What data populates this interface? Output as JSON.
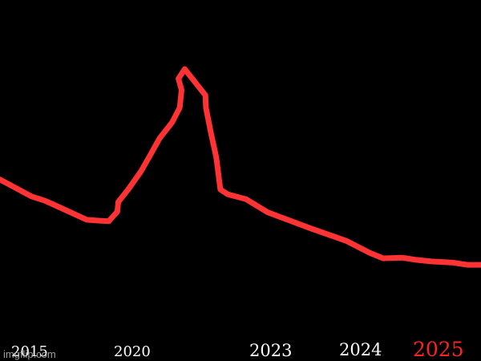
{
  "chart_data": {
    "type": "line",
    "title": "",
    "xlabel": "",
    "ylabel": "",
    "xlim": [
      2015,
      2025.5
    ],
    "ylim": [
      0,
      100
    ],
    "grid": false,
    "legend": "none",
    "background_color": "#000000",
    "line_color": "#ff3333",
    "series": [
      {
        "points": [
          [
            2015.0,
            48.5
          ],
          [
            2015.35,
            45.8
          ],
          [
            2015.7,
            43.1
          ],
          [
            2016.0,
            41.7
          ],
          [
            2016.3,
            39.7
          ],
          [
            2016.65,
            37.3
          ],
          [
            2016.9,
            35.6
          ],
          [
            2017.15,
            35.3
          ],
          [
            2017.4,
            35.1
          ],
          [
            2017.6,
            38.2
          ],
          [
            2017.62,
            41.3
          ],
          [
            2017.85,
            45.3
          ],
          [
            2018.1,
            51.1
          ],
          [
            2018.25,
            56.4
          ],
          [
            2018.4,
            61.8
          ],
          [
            2018.6,
            66.9
          ],
          [
            2018.72,
            71.6
          ],
          [
            2018.75,
            77.3
          ],
          [
            2018.7,
            80.9
          ],
          [
            2018.8,
            84.0
          ],
          [
            2019.3,
            75.6
          ],
          [
            2019.32,
            71.6
          ],
          [
            2019.5,
            63.6
          ],
          [
            2019.7,
            55.6
          ],
          [
            2019.85,
            45.3
          ],
          [
            2020.05,
            43.8
          ],
          [
            2020.35,
            42.2
          ],
          [
            2020.7,
            38.0
          ],
          [
            2021.5,
            32.9
          ],
          [
            2022.3,
            28.7
          ],
          [
            2022.8,
            25.0
          ],
          [
            2023.1,
            23.2
          ],
          [
            2023.5,
            23.4
          ],
          [
            2023.8,
            22.7
          ],
          [
            2024.1,
            22.2
          ],
          [
            2024.5,
            21.8
          ],
          [
            2024.75,
            21.1
          ],
          [
            2025.0,
            21.1
          ]
        ]
      }
    ],
    "x_ticks": [
      {
        "label": "2015",
        "color": "#ffffff",
        "size": "small"
      },
      {
        "label": "2020",
        "color": "#ffffff",
        "size": "small"
      },
      {
        "label": "2023",
        "color": "#ffffff",
        "size": "medium"
      },
      {
        "label": "2024",
        "color": "#ffffff",
        "size": "medium"
      },
      {
        "label": "2025",
        "color": "#ff2222",
        "size": "large"
      }
    ]
  },
  "watermark": {
    "text": "imgflip.com",
    "color": "#bbbbbb"
  }
}
